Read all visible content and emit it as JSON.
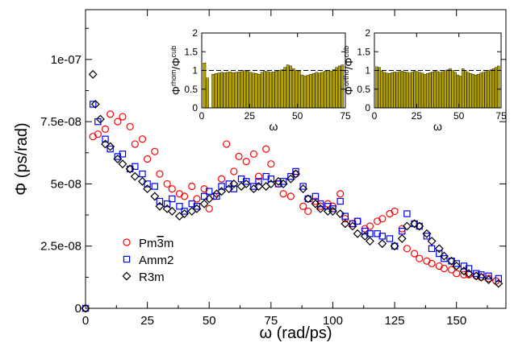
{
  "chart_data": [
    {
      "type": "scatter",
      "title": "",
      "xlabel": "ω (rad/ps)",
      "ylabel": "Φ (ps/rad)",
      "xlim": [
        0,
        170
      ],
      "ylim": [
        0,
        1.2e-07
      ],
      "x_ticks": [
        0,
        25,
        50,
        75,
        100,
        125,
        150
      ],
      "x_tick_labels": [
        "0",
        "25",
        "50",
        "75",
        "100",
        "125",
        "150"
      ],
      "y_ticks": [
        0,
        2.5e-08,
        5e-08,
        7.5e-08,
        1e-07
      ],
      "y_tick_labels": [
        "0",
        "2.5e-08",
        "5e-08",
        "7.5e-08",
        "1e-07"
      ],
      "legend_position": "bottom-left",
      "series": [
        {
          "name": "Pm3̄m",
          "name_main": "Pm",
          "name_bar": "3",
          "name_tail": "m",
          "color": "#ff0000",
          "marker": "circle",
          "x": [
            0,
            3,
            5,
            8,
            10,
            13,
            15,
            18,
            20,
            23,
            25,
            28,
            30,
            33,
            35,
            38,
            40,
            43,
            45,
            48,
            50,
            52,
            55,
            57,
            60,
            62,
            65,
            68,
            70,
            73,
            75,
            78,
            80,
            83,
            85,
            88,
            90,
            93,
            95,
            98,
            100,
            103,
            105,
            108,
            110,
            113,
            115,
            118,
            120,
            123,
            125,
            128,
            130,
            133,
            135,
            138,
            140,
            143,
            145,
            148,
            150,
            153,
            155,
            158,
            160,
            163,
            166
          ],
          "y": [
            0,
            6.9e-08,
            7e-08,
            7.2e-08,
            7.8e-08,
            7.5e-08,
            7.7e-08,
            7.3e-08,
            6.6e-08,
            6.8e-08,
            6e-08,
            6.3e-08,
            5.4e-08,
            5e-08,
            4.8e-08,
            4.6e-08,
            4.5e-08,
            4.9e-08,
            4.4e-08,
            4.8e-08,
            4e-08,
            4.5e-08,
            5.2e-08,
            6.6e-08,
            5.5e-08,
            6.1e-08,
            5.9e-08,
            6.2e-08,
            5.3e-08,
            6.4e-08,
            5.8e-08,
            5e-08,
            4.6e-08,
            4.5e-08,
            5.4e-08,
            4.1e-08,
            3.9e-08,
            4.3e-08,
            4.1e-08,
            4.2e-08,
            4.1e-08,
            4.6e-08,
            3.6e-08,
            3.4e-08,
            3.5e-08,
            3.2e-08,
            3.3e-08,
            3.5e-08,
            3.6e-08,
            3.8e-08,
            3.9e-08,
            3.2e-08,
            2.4e-08,
            2.2e-08,
            2e-08,
            1.9e-08,
            1.8e-08,
            1.7e-08,
            1.6e-08,
            1.55e-08,
            1.4e-08,
            1.35e-08,
            1.35e-08,
            1.3e-08,
            1.25e-08,
            1.2e-08,
            1.1e-08
          ]
        },
        {
          "name": "Amm2",
          "color": "#0000ff",
          "marker": "square",
          "x": [
            0,
            3,
            5,
            8,
            10,
            13,
            15,
            18,
            20,
            23,
            25,
            28,
            30,
            33,
            35,
            38,
            40,
            43,
            45,
            48,
            50,
            53,
            55,
            58,
            60,
            63,
            65,
            68,
            70,
            73,
            75,
            78,
            80,
            83,
            85,
            88,
            90,
            93,
            95,
            98,
            100,
            103,
            105,
            108,
            110,
            113,
            115,
            118,
            120,
            123,
            125,
            128,
            130,
            133,
            135,
            138,
            140,
            143,
            145,
            148,
            150,
            153,
            155,
            158,
            160,
            163,
            167
          ],
          "y": [
            0,
            8.2e-08,
            7.5e-08,
            6.8e-08,
            6.4e-08,
            6.1e-08,
            6.2e-08,
            5.6e-08,
            5.7e-08,
            5.4e-08,
            5e-08,
            4.9e-08,
            4.3e-08,
            4.2e-08,
            4.4e-08,
            4.1e-08,
            3.9e-08,
            4.2e-08,
            4.1e-08,
            4.5e-08,
            4.7e-08,
            4.5e-08,
            4.9e-08,
            5e-08,
            4.8e-08,
            5.2e-08,
            5.1e-08,
            4.9e-08,
            5.1e-08,
            5.3e-08,
            5.2e-08,
            5e-08,
            5.1e-08,
            5.3e-08,
            5.5e-08,
            4.9e-08,
            4.4e-08,
            4.5e-08,
            4.2e-08,
            4.1e-08,
            4e-08,
            4.3e-08,
            3.7e-08,
            3.4e-08,
            3.5e-08,
            3.1e-08,
            3e-08,
            3e-08,
            2.9e-08,
            2.8e-08,
            2.5e-08,
            3.1e-08,
            3.8e-08,
            3.4e-08,
            3.3e-08,
            2.9e-08,
            2.4e-08,
            2.2e-08,
            2e-08,
            1.9e-08,
            1.8e-08,
            1.7e-08,
            1.6e-08,
            1.4e-08,
            1.35e-08,
            1.3e-08,
            1.2e-08
          ]
        },
        {
          "name": "R3m",
          "color": "#000000",
          "marker": "diamond",
          "x": [
            0,
            3,
            4,
            6,
            8,
            10,
            13,
            15,
            18,
            20,
            23,
            25,
            28,
            30,
            33,
            35,
            38,
            40,
            43,
            45,
            48,
            50,
            53,
            55,
            58,
            60,
            63,
            65,
            68,
            70,
            73,
            75,
            78,
            80,
            83,
            85,
            88,
            90,
            93,
            95,
            98,
            100,
            103,
            105,
            108,
            110,
            113,
            115,
            120,
            125,
            128,
            130,
            133,
            135,
            138,
            140,
            143,
            145,
            148,
            150,
            153,
            155,
            158,
            160,
            163,
            167
          ],
          "y": [
            0,
            9.4e-08,
            8.2e-08,
            7.6e-08,
            6.6e-08,
            6.5e-08,
            6e-08,
            5.8e-08,
            5.6e-08,
            5.3e-08,
            5.1e-08,
            4.8e-08,
            4.5e-08,
            4.1e-08,
            4e-08,
            3.9e-08,
            3.7e-08,
            3.8e-08,
            3.9e-08,
            4e-08,
            4.2e-08,
            4.4e-08,
            4.6e-08,
            4.7e-08,
            4.8e-08,
            5e-08,
            4.9e-08,
            5e-08,
            4.8e-08,
            4.9e-08,
            4.9e-08,
            5e-08,
            5.1e-08,
            5e-08,
            5.2e-08,
            5.4e-08,
            4.8e-08,
            4.4e-08,
            4.2e-08,
            4e-08,
            3.9e-08,
            3.9e-08,
            3.8e-08,
            3.4e-08,
            3.3e-08,
            3e-08,
            2.9e-08,
            2.7e-08,
            2.6e-08,
            2.5e-08,
            2.8e-08,
            3.3e-08,
            3.4e-08,
            3.3e-08,
            3e-08,
            2.7e-08,
            2.4e-08,
            2.1e-08,
            1.9e-08,
            1.7e-08,
            1.5e-08,
            1.4e-08,
            1.3e-08,
            1.25e-08,
            1.15e-08,
            1e-08
          ]
        }
      ]
    },
    {
      "type": "bar",
      "inset": "left",
      "title": "",
      "xlabel": "ω",
      "ylabel_main": "Φ",
      "ylabel_sup": "rhom",
      "ylabel_sep": "/Φ",
      "ylabel_sup2": "cub",
      "xlim": [
        0,
        75
      ],
      "ylim": [
        0,
        2
      ],
      "x_ticks": [
        0,
        25,
        50,
        75
      ],
      "x_tick_labels": [
        "0",
        "25",
        "50",
        "75"
      ],
      "y_ticks": [
        0,
        0.5,
        1,
        1.5,
        2
      ],
      "y_tick_labels": [
        "0",
        "0.5",
        "1",
        "1.5",
        "2"
      ],
      "reference_line": 1,
      "bar_color": "#b5a400",
      "bar_width": 1.5,
      "x": [
        1.5,
        3,
        4.5,
        6,
        7.5,
        9,
        10.5,
        12,
        13.5,
        15,
        16.5,
        18,
        19.5,
        21,
        22.5,
        24,
        25.5,
        27,
        28.5,
        30,
        31.5,
        33,
        34.5,
        36,
        37.5,
        39,
        40.5,
        42,
        43.5,
        45,
        46.5,
        48,
        49.5,
        51,
        52.5,
        54,
        55.5,
        57,
        58.5,
        60,
        61.5,
        63,
        64.5,
        66,
        67.5,
        69,
        70.5,
        72,
        73.5
      ],
      "values": [
        1.2,
        0.8,
        0.0,
        0.9,
        0.92,
        0.93,
        0.95,
        0.94,
        0.95,
        0.96,
        0.94,
        0.95,
        0.96,
        0.97,
        1.0,
        0.98,
        0.95,
        0.93,
        0.92,
        0.9,
        0.95,
        0.98,
        0.97,
        0.95,
        0.96,
        0.98,
        1.0,
        1.02,
        1.08,
        1.15,
        1.12,
        1.05,
        1.0,
        0.98,
        0.88,
        0.85,
        0.87,
        0.9,
        0.92,
        0.95,
        0.93,
        0.95,
        0.98,
        1.0,
        0.98,
        1.03,
        1.08,
        1.12,
        1.15
      ]
    },
    {
      "type": "bar",
      "inset": "right",
      "title": "",
      "xlabel": "ω",
      "ylabel_main": "Φ",
      "ylabel_sup": "ortho",
      "ylabel_sep": "/Φ",
      "ylabel_sup2": "cub",
      "xlim": [
        0,
        75
      ],
      "ylim": [
        0,
        2
      ],
      "x_ticks": [
        0,
        25,
        50,
        75
      ],
      "x_tick_labels": [
        "0",
        "25",
        "50",
        "75"
      ],
      "y_ticks": [
        0,
        0.5,
        1,
        1.5,
        2
      ],
      "y_tick_labels": [
        "0",
        "0.5",
        "1",
        "1.5",
        "2"
      ],
      "reference_line": 1,
      "bar_color": "#b5a400",
      "bar_width": 1.5,
      "x": [
        1.5,
        3,
        4.5,
        6,
        7.5,
        9,
        10.5,
        12,
        13.5,
        15,
        16.5,
        18,
        19.5,
        21,
        22.5,
        24,
        25.5,
        27,
        28.5,
        30,
        31.5,
        33,
        34.5,
        36,
        37.5,
        39,
        40.5,
        42,
        43.5,
        45,
        46.5,
        48,
        49.5,
        51,
        52.5,
        54,
        55.5,
        57,
        58.5,
        60,
        61.5,
        63,
        64.5,
        66,
        67.5,
        69,
        70.5,
        72,
        73.5
      ],
      "values": [
        1.1,
        1.08,
        0.98,
        0.95,
        0.93,
        0.92,
        0.94,
        0.96,
        0.95,
        0.97,
        0.98,
        0.96,
        0.95,
        0.93,
        0.96,
        0.98,
        0.97,
        0.95,
        0.93,
        0.9,
        0.92,
        0.94,
        0.96,
        0.98,
        0.97,
        0.95,
        0.97,
        1.0,
        1.02,
        1.05,
        1.0,
        0.95,
        0.88,
        0.85,
        1.05,
        1.0,
        0.95,
        0.92,
        0.9,
        0.88,
        0.9,
        0.93,
        0.95,
        0.97,
        1.0,
        1.02,
        1.05,
        1.08,
        1.12
      ]
    }
  ]
}
